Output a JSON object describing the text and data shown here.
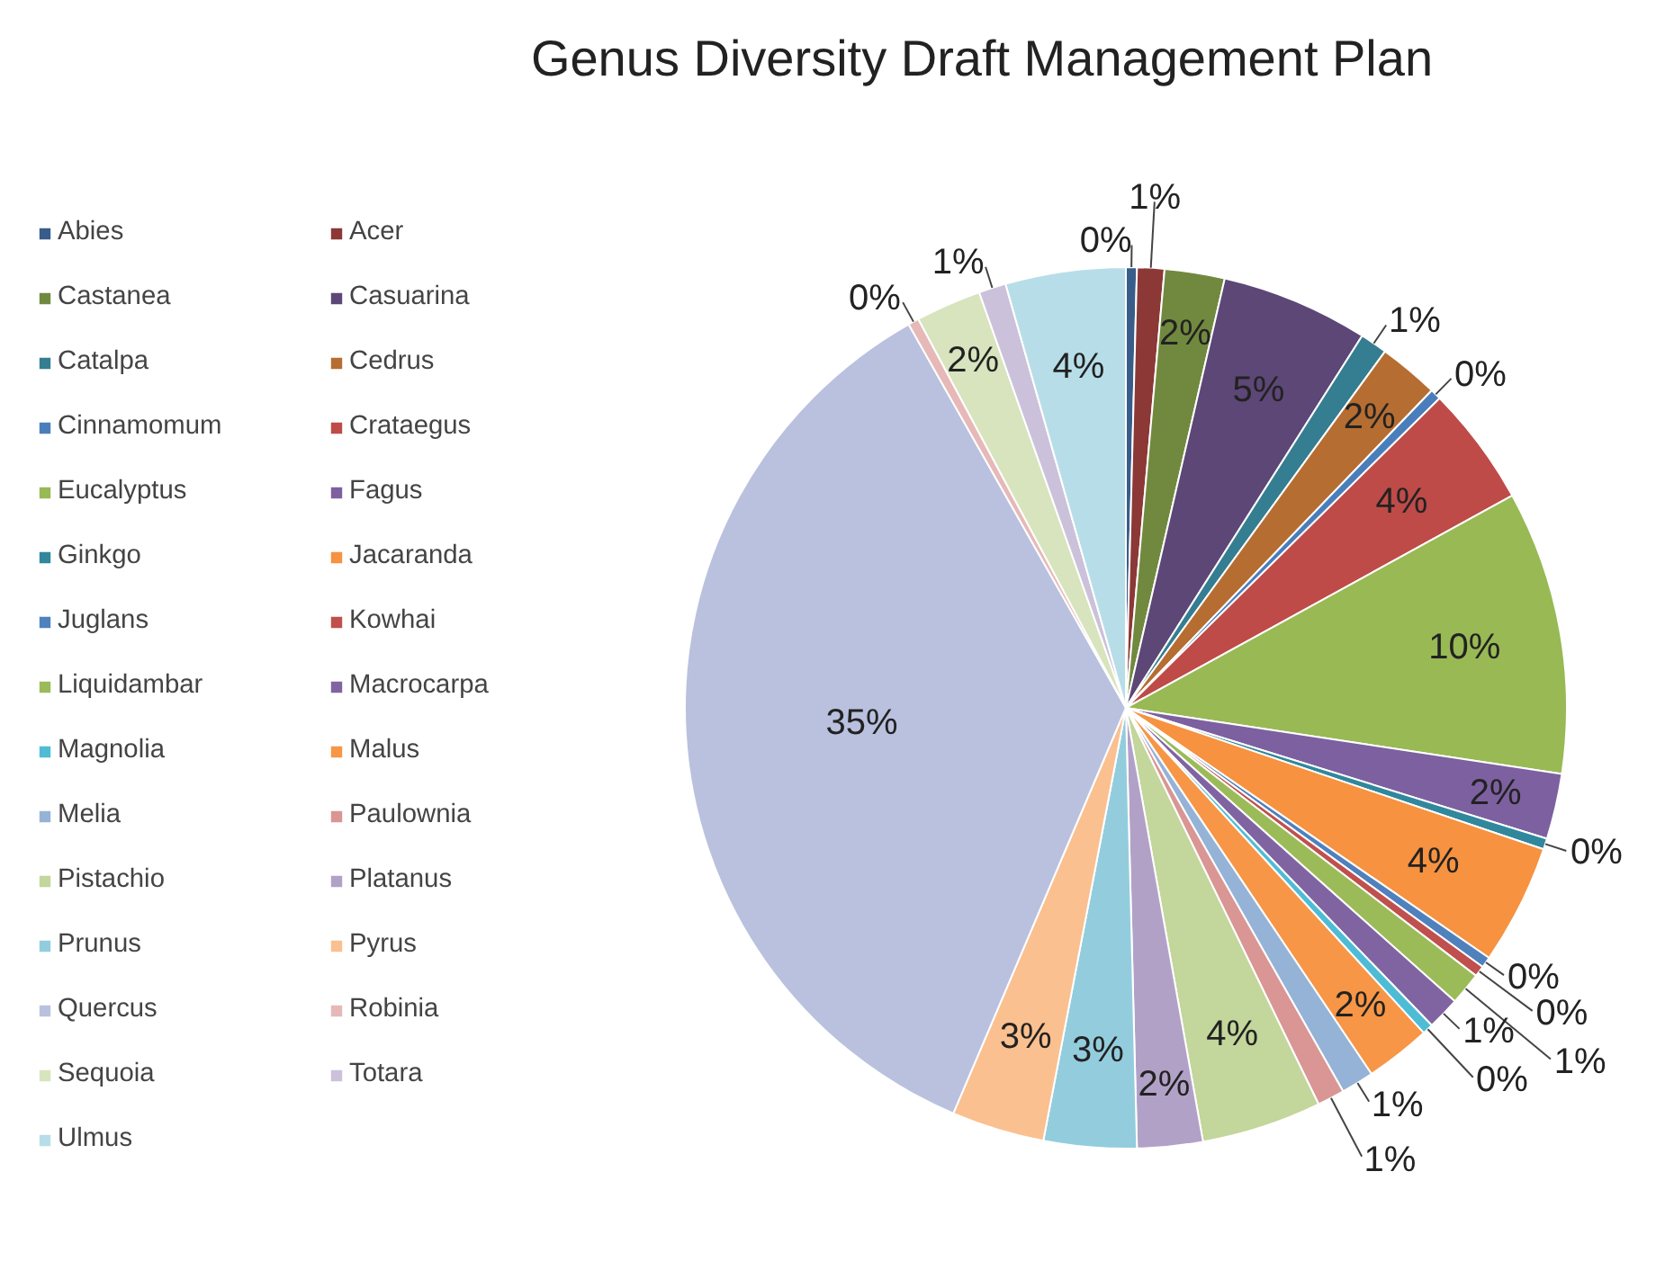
{
  "chart_data": {
    "type": "pie",
    "title": "Genus Diversity Draft Management Plan",
    "categories": [
      "Abies",
      "Acer",
      "Castanea",
      "Casuarina",
      "Catalpa",
      "Cedrus",
      "Cinnamomum",
      "Crataegus",
      "Eucalyptus",
      "Fagus",
      "Ginkgo",
      "Jacaranda",
      "Juglans",
      "Kowhai",
      "Liquidambar",
      "Macrocarpa",
      "Magnolia",
      "Malus",
      "Melia",
      "Paulownia",
      "Pistachio",
      "Platanus",
      "Prunus",
      "Pyrus",
      "Quercus",
      "Robinia",
      "Sequoia",
      "Totara",
      "Ulmus"
    ],
    "values": [
      0.4,
      1.0,
      2.2,
      5.4,
      1.0,
      2.2,
      0.4,
      4.4,
      10.4,
      2.4,
      0.4,
      4.4,
      0.4,
      0.4,
      1.2,
      1.2,
      0.4,
      2.4,
      1.2,
      1.0,
      4.4,
      2.4,
      3.4,
      3.4,
      35.4,
      0.4,
      2.4,
      1.0,
      4.4
    ],
    "value_labels": [
      "0%",
      "1%",
      "2%",
      "5%",
      "1%",
      "2%",
      "0%",
      "4%",
      "10%",
      "2%",
      "0%",
      "4%",
      "0%",
      "0%",
      "1%",
      "1%",
      "0%",
      "2%",
      "1%",
      "1%",
      "4%",
      "2%",
      "3%",
      "3%",
      "35%",
      "0%",
      "2%",
      "1%",
      "4%"
    ],
    "colors": [
      "#385d8a",
      "#8c3836",
      "#71893f",
      "#5c4776",
      "#357d91",
      "#b66d31",
      "#4a7ebb",
      "#be4b48",
      "#98b954",
      "#7d60a0",
      "#31879c",
      "#f69240",
      "#4f81bd",
      "#c0504d",
      "#9bbb59",
      "#8064a2",
      "#4fbcd6",
      "#f79646",
      "#95b3d7",
      "#d99694",
      "#c3d69b",
      "#b2a1c7",
      "#93cddd",
      "#fac090",
      "#b9c1de",
      "#e6b9b8",
      "#d7e4bd",
      "#ccc1da",
      "#b7dee8"
    ],
    "legend": "left"
  }
}
